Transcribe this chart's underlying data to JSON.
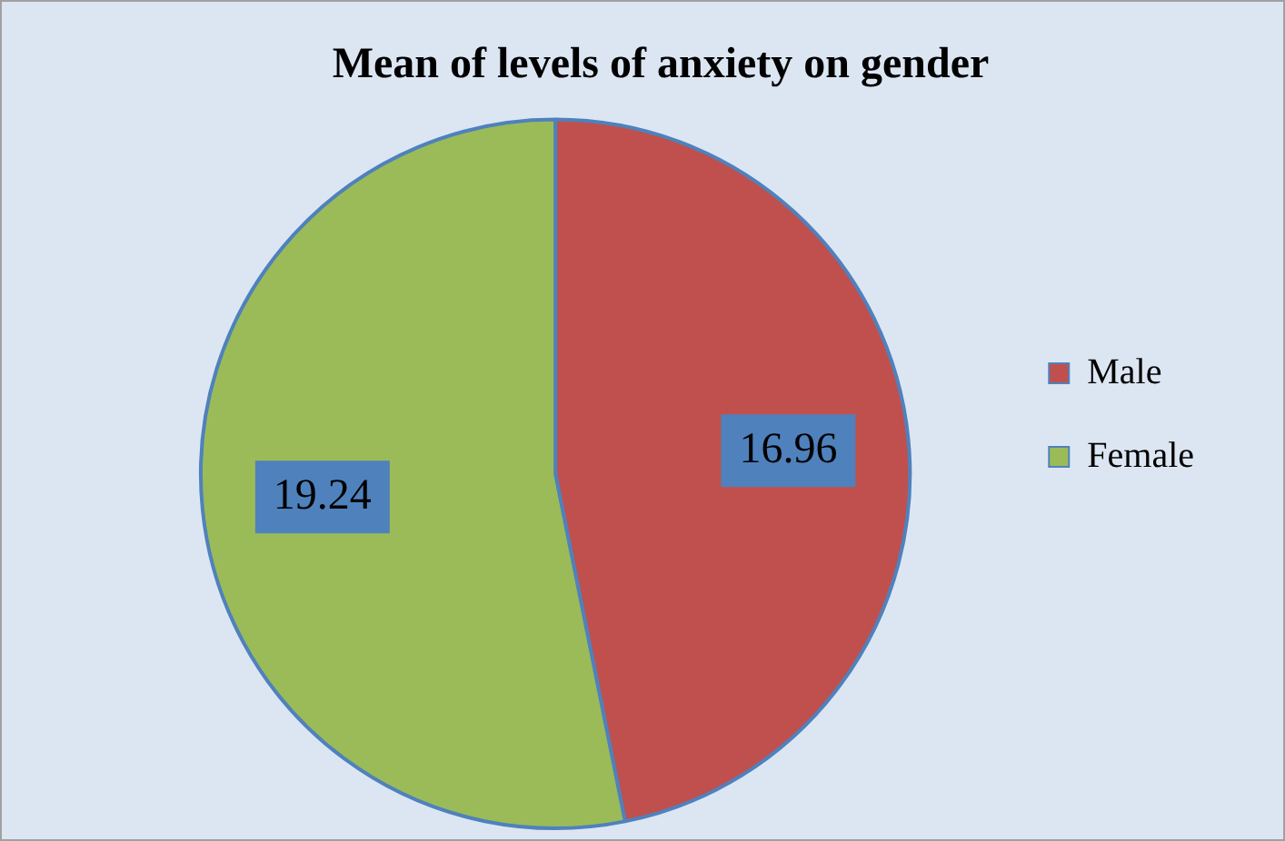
{
  "chart_data": {
    "type": "pie",
    "title": "Mean of levels of anxiety on gender",
    "categories": [
      "Male",
      "Female"
    ],
    "values": [
      16.96,
      19.24
    ],
    "colors": [
      "#c0504d",
      "#9bbb59"
    ],
    "data_labels": true,
    "legend": "right"
  }
}
